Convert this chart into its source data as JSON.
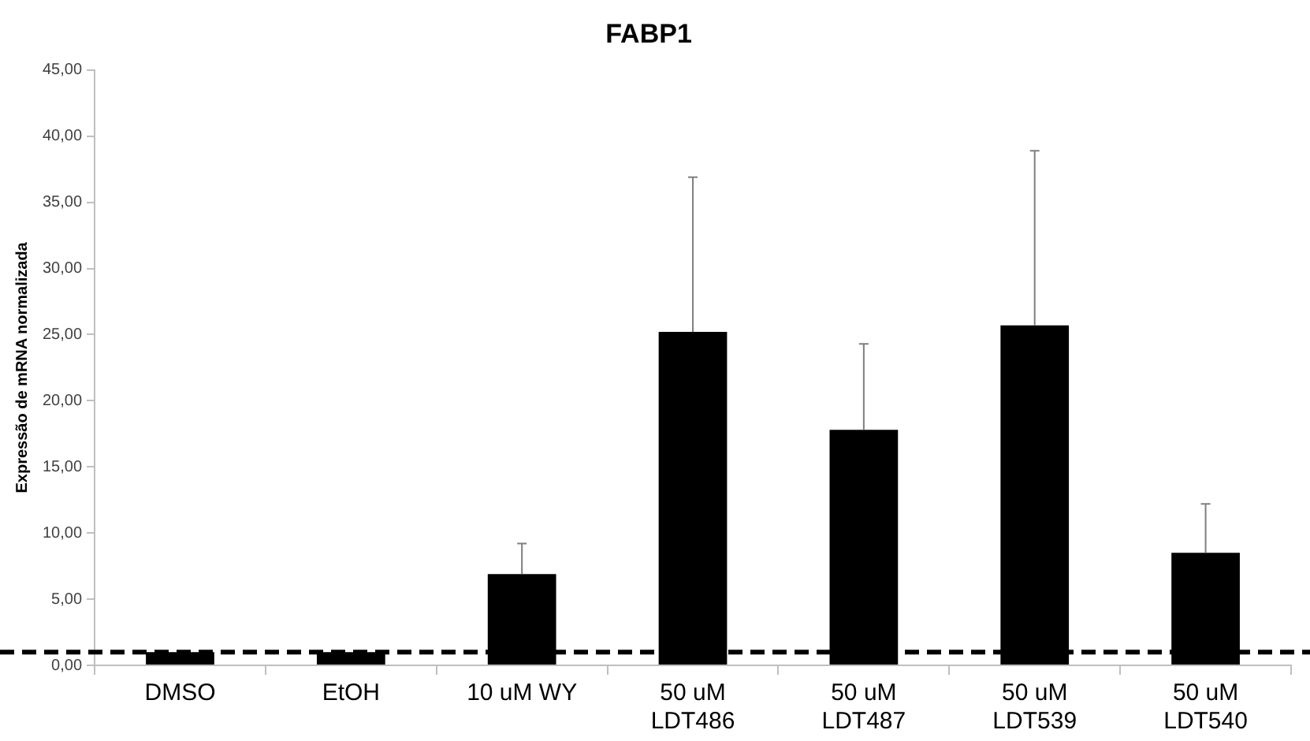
{
  "chart_data": {
    "type": "bar",
    "title": "FABP1",
    "ylabel": "Expressão de mRNA normalizada",
    "categories": [
      "DMSO",
      "EtOH",
      "10 uM WY",
      "50 uM\nLDT486",
      "50 uM\nLDT487",
      "50 uM\nLDT539",
      "50 uM\nLDT540"
    ],
    "values": [
      1.0,
      1.0,
      6.9,
      25.2,
      17.8,
      25.7,
      8.5
    ],
    "errors": [
      null,
      null,
      [
        6.9,
        9.2
      ],
      [
        25.2,
        36.9
      ],
      [
        17.8,
        24.3
      ],
      [
        25.7,
        38.9
      ],
      [
        8.5,
        12.2
      ]
    ],
    "color": "#000000",
    "ylim": [
      0,
      45
    ],
    "yticks": [
      {
        "value": 0,
        "label": "0,00"
      },
      {
        "value": 5,
        "label": "5,00"
      },
      {
        "value": 10,
        "label": "10,00"
      },
      {
        "value": 15,
        "label": "15,00"
      },
      {
        "value": 20,
        "label": "20,00"
      },
      {
        "value": 25,
        "label": "25,00"
      },
      {
        "value": 30,
        "label": "30,00"
      },
      {
        "value": 35,
        "label": "35,00"
      },
      {
        "value": 40,
        "label": "40,00"
      },
      {
        "value": 45,
        "label": "45,00"
      }
    ],
    "ref_lines": [
      {
        "axis": "y",
        "value": 1,
        "label": null,
        "color": "#000000",
        "line_style": "dashed"
      }
    ],
    "grid": false,
    "legend": false
  }
}
